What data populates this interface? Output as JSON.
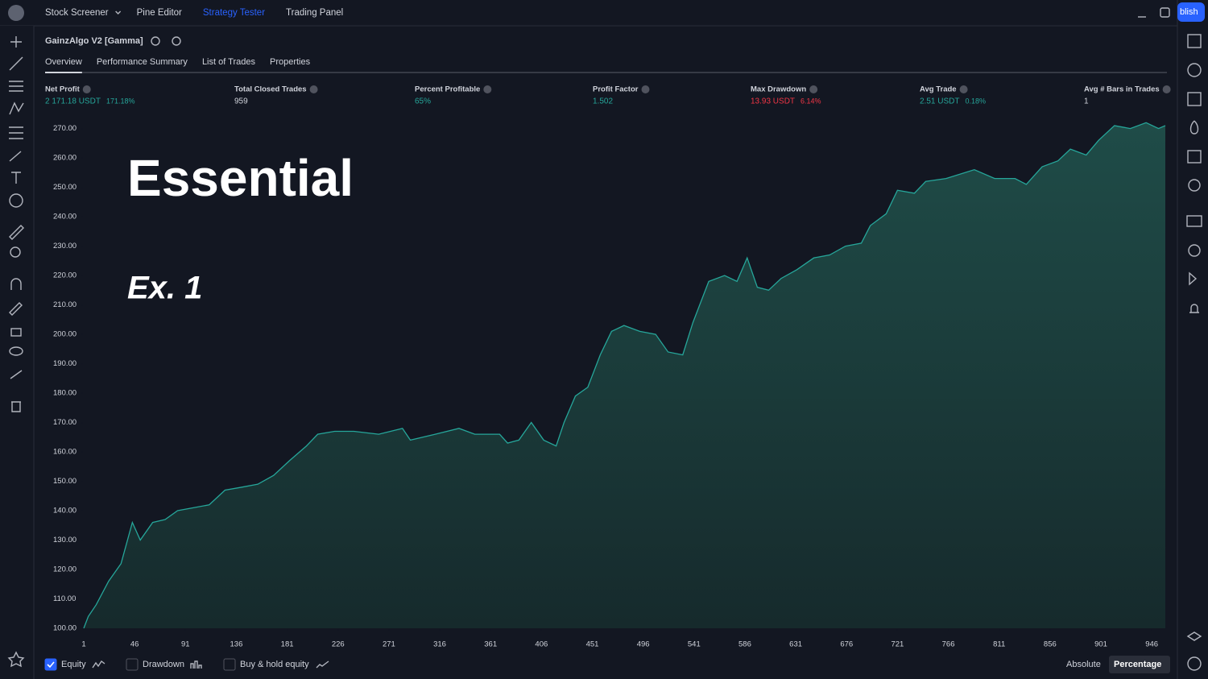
{
  "topbar": {
    "items": [
      "Stock Screener",
      "Pine Editor",
      "Strategy Tester",
      "Trading Panel"
    ],
    "active": 2,
    "publish": "blish"
  },
  "strategy": {
    "name": "GainzAlgo V2 [Gamma]",
    "tabs": [
      "Overview",
      "Performance Summary",
      "List of Trades",
      "Properties"
    ],
    "active_tab": 0
  },
  "metrics": [
    {
      "label": "Net Profit",
      "value": "2 171.18 USDT",
      "percent": "171.18%",
      "color": "#26a69a"
    },
    {
      "label": "Total Closed Trades",
      "value": "959",
      "color": "#d1d4dc"
    },
    {
      "label": "Percent Profitable",
      "value": "65%",
      "color": "#26a69a"
    },
    {
      "label": "Profit Factor",
      "value": "1.502",
      "color": "#26a69a"
    },
    {
      "label": "Max Drawdown",
      "value": "13.93 USDT",
      "percent": "6.14%",
      "color": "#f23645"
    },
    {
      "label": "Avg Trade",
      "value": "2.51 USDT",
      "percent": "0.18%",
      "color": "#26a69a"
    },
    {
      "label": "Avg # Bars in Trades",
      "value": "1",
      "color": "#d1d4dc"
    }
  ],
  "overlay": {
    "title": "Essential",
    "subtitle": "Ex. 1"
  },
  "chart_data": {
    "type": "area",
    "color": "#26a69a",
    "x": [
      1,
      5,
      12,
      23,
      34,
      44,
      51,
      62,
      73,
      84,
      98,
      112,
      126,
      141,
      155,
      169,
      183,
      198,
      208,
      223,
      240,
      262,
      283,
      290,
      312,
      333,
      347,
      369,
      376,
      386,
      397,
      408,
      419,
      426,
      436,
      447,
      458,
      468,
      479,
      493,
      507,
      518,
      531,
      540,
      554,
      568,
      579,
      588,
      597,
      607,
      618,
      632,
      647,
      661,
      675,
      689,
      697,
      711,
      721,
      736,
      746,
      764,
      789,
      807,
      825,
      835,
      849,
      863,
      874,
      888,
      899,
      913,
      927,
      941,
      952,
      958
    ],
    "values": [
      100,
      104,
      108,
      116,
      122,
      136,
      130,
      136,
      137,
      140,
      141,
      142,
      147,
      148,
      149,
      152,
      157,
      162,
      166,
      167,
      167,
      166,
      168,
      164,
      166,
      168,
      166,
      166,
      163,
      164,
      170,
      164,
      162,
      170,
      179,
      182,
      193,
      201,
      203,
      201,
      200,
      194,
      193,
      204,
      218,
      220,
      218,
      226,
      216,
      215,
      219,
      222,
      226,
      227,
      230,
      231,
      237,
      241,
      249,
      248,
      252,
      253,
      256,
      253,
      253,
      251,
      257,
      259,
      263,
      261,
      266,
      271,
      270,
      272,
      270,
      271
    ],
    "xlim": [
      1,
      958
    ],
    "ylim": [
      100,
      274
    ],
    "xticks": [
      1,
      46,
      91,
      136,
      181,
      226,
      271,
      316,
      361,
      406,
      451,
      496,
      541,
      586,
      631,
      676,
      721,
      766,
      811,
      856,
      901,
      946
    ],
    "yticks": [
      {
        "value": 100,
        "label": "100.00"
      },
      {
        "value": 110,
        "label": "110.00"
      },
      {
        "value": 120,
        "label": "120.00"
      },
      {
        "value": 130,
        "label": "130.00"
      },
      {
        "value": 140,
        "label": "140.00"
      },
      {
        "value": 150,
        "label": "150.00"
      },
      {
        "value": 160,
        "label": "160.00"
      },
      {
        "value": 170,
        "label": "170.00"
      },
      {
        "value": 180,
        "label": "180.00"
      },
      {
        "value": 190,
        "label": "190.00"
      },
      {
        "value": 200,
        "label": "200.00"
      },
      {
        "value": 210,
        "label": "210.00"
      },
      {
        "value": 220,
        "label": "220.00"
      },
      {
        "value": 230,
        "label": "230.00"
      },
      {
        "value": 240,
        "label": "240.00"
      },
      {
        "value": 250,
        "label": "250.00"
      },
      {
        "value": 260,
        "label": "260.00"
      },
      {
        "value": 270,
        "label": "270.00"
      }
    ]
  },
  "footer": {
    "toggles": [
      {
        "label": "Equity",
        "checked": true
      },
      {
        "label": "Drawdown",
        "checked": false
      },
      {
        "label": "Buy & hold equity",
        "checked": false
      }
    ],
    "modes": [
      "Absolute",
      "Percentage"
    ],
    "active_mode": 1
  }
}
